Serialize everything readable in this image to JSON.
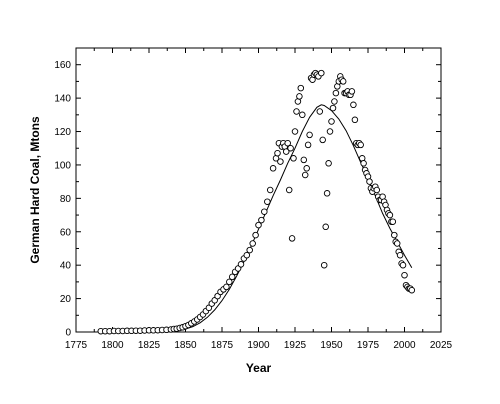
{
  "chart_data": {
    "type": "scatter",
    "xlabel": "Year",
    "ylabel": "German Hard Coal, Mtons",
    "xlim": [
      1775,
      2025
    ],
    "ylim": [
      0,
      170
    ],
    "xticks": [
      1775,
      1800,
      1825,
      1850,
      1875,
      1900,
      1925,
      1950,
      1975,
      2000,
      2025
    ],
    "yticks": [
      0,
      20,
      40,
      60,
      80,
      100,
      120,
      140,
      160
    ],
    "grid": false,
    "marker": "open-circle",
    "line_color": "#000000",
    "series": [
      {
        "kind": "points",
        "x": [
          1792,
          1795,
          1798,
          1801,
          1804,
          1807,
          1810,
          1813,
          1816,
          1819,
          1822,
          1825,
          1828,
          1831,
          1834,
          1837,
          1840,
          1842,
          1844,
          1846,
          1848,
          1850,
          1852,
          1854,
          1856,
          1858,
          1860,
          1862,
          1864,
          1866,
          1868,
          1870,
          1872,
          1874,
          1876,
          1878,
          1880,
          1882,
          1884,
          1886,
          1888,
          1890,
          1892,
          1894,
          1896,
          1898,
          1900,
          1902,
          1904,
          1906,
          1908,
          1910,
          1912,
          1913,
          1914,
          1915,
          1916,
          1917,
          1918,
          1919,
          1920,
          1921,
          1922,
          1923,
          1924,
          1925,
          1926,
          1927,
          1928,
          1929,
          1930,
          1931,
          1932,
          1933,
          1934,
          1935,
          1936,
          1937,
          1938,
          1939,
          1940,
          1941,
          1942,
          1943,
          1944,
          1945,
          1946,
          1947,
          1948,
          1949,
          1950,
          1951,
          1952,
          1953,
          1954,
          1955,
          1956,
          1957,
          1958,
          1959,
          1960,
          1961,
          1962,
          1963,
          1964,
          1965,
          1966,
          1967,
          1968,
          1969,
          1970,
          1971,
          1972,
          1973,
          1974,
          1975,
          1976,
          1977,
          1978,
          1979,
          1980,
          1981,
          1982,
          1983,
          1984,
          1985,
          1986,
          1987,
          1988,
          1989,
          1990,
          1991,
          1992,
          1993,
          1994,
          1995,
          1996,
          1997,
          1998,
          1999,
          2000,
          2001,
          2002,
          2003,
          2004,
          2005
        ],
        "y": [
          0.5,
          0.5,
          0.5,
          0.6,
          0.6,
          0.6,
          0.7,
          0.7,
          0.8,
          0.8,
          0.9,
          1.0,
          1.0,
          1.1,
          1.2,
          1.3,
          1.5,
          1.8,
          2.0,
          2.4,
          2.8,
          3.5,
          4.2,
          5.2,
          6.3,
          7.5,
          9.0,
          10.5,
          12.5,
          14.5,
          17.0,
          19.0,
          21.5,
          24.0,
          25.5,
          27.0,
          30.0,
          33.0,
          36.0,
          38.0,
          40.5,
          44.0,
          46.0,
          49.0,
          53.0,
          58.0,
          64.0,
          67.0,
          72.0,
          78.0,
          85.0,
          98.0,
          104.0,
          107.0,
          113.0,
          102.0,
          111.0,
          113.0,
          111.0,
          108.0,
          113.0,
          85.0,
          110.0,
          56.0,
          104.0,
          120.0,
          132.0,
          138.0,
          141.0,
          146.0,
          130.0,
          103.0,
          94.0,
          98.0,
          112.0,
          118.0,
          152.0,
          151.0,
          154.0,
          155.0,
          154.0,
          153.0,
          132.0,
          155.0,
          115.0,
          40.0,
          63.0,
          83.0,
          101.0,
          120.0,
          126.0,
          134.0,
          138.0,
          143.0,
          147.0,
          150.0,
          153.0,
          151.0,
          150.0,
          143.0,
          143.0,
          144.0,
          142.0,
          142.0,
          144.0,
          136.0,
          127.0,
          113.0,
          112.0,
          113.0,
          112.0,
          104.0,
          101.0,
          97.0,
          95.0,
          93.0,
          90.0,
          86.0,
          84.0,
          86.0,
          87.0,
          85.0,
          81.0,
          79.0,
          79.0,
          81.0,
          78.0,
          76.0,
          73.0,
          71.0,
          70.0,
          66.0,
          66.0,
          58.0,
          54.0,
          53.0,
          48.0,
          46.0,
          41.0,
          40.0,
          34.0,
          28.0,
          27.0,
          26.0,
          26.0,
          25.0
        ]
      },
      {
        "kind": "fit-curve",
        "x": [
          1825,
          1835,
          1845,
          1850,
          1855,
          1860,
          1865,
          1870,
          1875,
          1880,
          1885,
          1890,
          1895,
          1900,
          1905,
          1910,
          1915,
          1920,
          1925,
          1930,
          1935,
          1940,
          1943,
          1945,
          1950,
          1955,
          1960,
          1965,
          1970,
          1975,
          1980,
          1985,
          1990,
          1995,
          2000,
          2005
        ],
        "y": [
          0.1,
          0.3,
          1.0,
          1.8,
          3.2,
          5.5,
          8.8,
          13.2,
          18.8,
          25.5,
          33.4,
          42.0,
          51.5,
          61.5,
          71.6,
          81.6,
          91.0,
          101.0,
          110.0,
          120.0,
          128.5,
          134.5,
          136.0,
          135.6,
          132.5,
          127.5,
          120.5,
          111.5,
          101.5,
          92.0,
          81.5,
          71.0,
          62.0,
          54.0,
          46.0,
          38.5
        ]
      }
    ]
  }
}
